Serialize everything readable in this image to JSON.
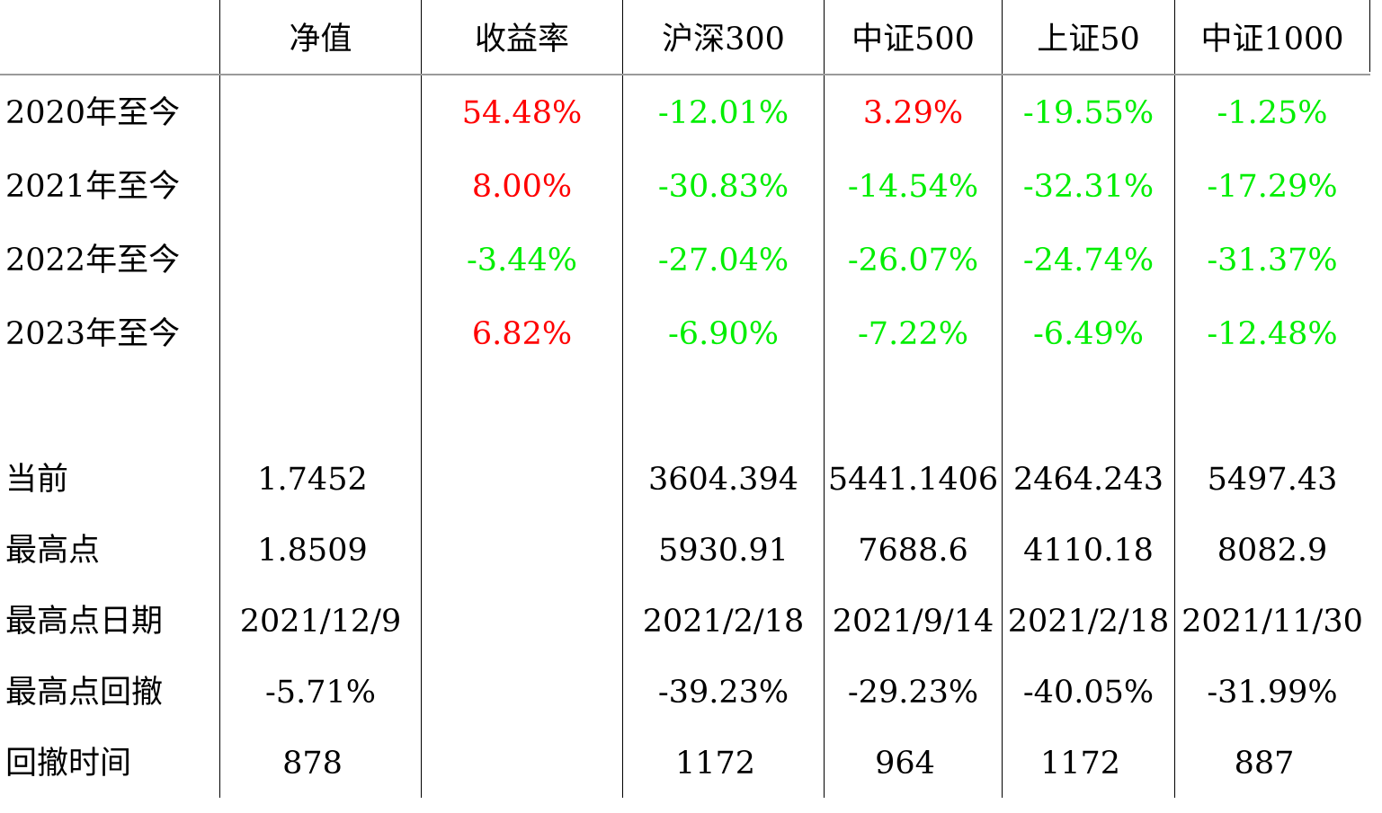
{
  "colors": {
    "positive": "#ff0000",
    "negative": "#00ee00",
    "text": "#000000",
    "header_rule": "#9a9a9a"
  },
  "headers": [
    "净值",
    "收益率",
    "沪深300",
    "中证500",
    "上证50",
    "中证1000"
  ],
  "period_rows": [
    {
      "label": "2020年至今",
      "return": "54.48%",
      "hs300": "-12.01%",
      "zz500": "3.29%",
      "sz50": "-19.55%",
      "zz1000": "-1.25%"
    },
    {
      "label": "2021年至今",
      "return": "8.00%",
      "hs300": "-30.83%",
      "zz500": "-14.54%",
      "sz50": "-32.31%",
      "zz1000": "-17.29%"
    },
    {
      "label": "2022年至今",
      "return": "-3.44%",
      "hs300": "-27.04%",
      "zz500": "-26.07%",
      "sz50": "-24.74%",
      "zz1000": "-31.37%"
    },
    {
      "label": "2023年至今",
      "return": "6.82%",
      "hs300": "-6.90%",
      "zz500": "-7.22%",
      "sz50": "-6.49%",
      "zz1000": "-12.48%"
    }
  ],
  "stat_rows": [
    {
      "label": "当前",
      "nav": "1.7452",
      "hs300": "3604.394",
      "zz500": "5441.1406",
      "sz50": "2464.243",
      "zz1000": "5497.43"
    },
    {
      "label": "最高点",
      "nav": "1.8509",
      "hs300": "5930.91",
      "zz500": "7688.6",
      "sz50": "4110.18",
      "zz1000": "8082.9"
    },
    {
      "label": "最高点日期",
      "nav": "2021/12/9",
      "hs300": "2021/2/18",
      "zz500": "2021/9/14",
      "sz50": "2021/2/18",
      "zz1000": "2021/11/30"
    },
    {
      "label": "最高点回撤",
      "nav": "-5.71%",
      "hs300": "-39.23%",
      "zz500": "-29.23%",
      "sz50": "-40.05%",
      "zz1000": "-31.99%"
    },
    {
      "label": "回撤时间",
      "nav": "878",
      "hs300": "1172",
      "zz500": "964",
      "sz50": "1172",
      "zz1000": "887"
    }
  ]
}
